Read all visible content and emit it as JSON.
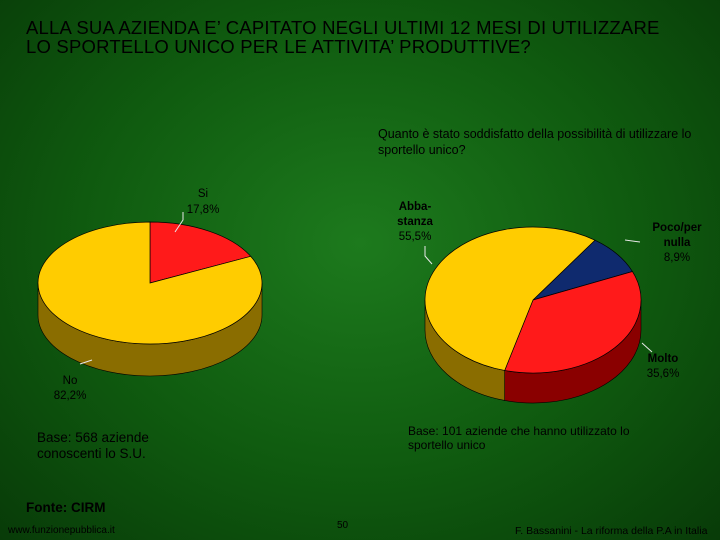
{
  "title": "ALLA SUA AZIENDA E’ CAPITATO NEGLI ULTIMI 12 MESI DI UTILIZZARE LO SPORTELLO UNICO PER LE ATTIVITA’ PRODUTTIVE?",
  "colors": {
    "yellow": "#ffcc00",
    "yellow_side": "#8a6d00",
    "red": "#ff1a1a",
    "red_side": "#8a0000",
    "blue": "#0f2a6e",
    "blue_side": "#061640"
  },
  "chart_data": [
    {
      "type": "pie",
      "slices": [
        {
          "name": "Si",
          "value": 17.8,
          "label": "17,8%",
          "color": "#ff1a1a"
        },
        {
          "name": "No",
          "value": 82.2,
          "label": "82,2%",
          "color": "#ffcc00"
        }
      ],
      "base_note": "Base: 568 aziende conoscenti lo S.U."
    },
    {
      "type": "pie",
      "subtitle": "Quanto è stato soddisfatto della possibilità di utilizzare lo sportello unico?",
      "slices": [
        {
          "name": "Poco/per nulla",
          "value": 8.9,
          "label": "8,9%",
          "color": "#0f2a6e"
        },
        {
          "name": "Molto",
          "value": 35.6,
          "label": "35,6%",
          "color": "#ff1a1a"
        },
        {
          "name": "Abba-stanza",
          "value": 55.5,
          "label": "55,5%",
          "color": "#ffcc00"
        }
      ],
      "base_note": "Base: 101 aziende che hanno utilizzato lo sportello unico"
    }
  ],
  "labels": {
    "si_name": "Si",
    "si_pct": "17,8%",
    "no_name": "No",
    "no_pct": "82,2%",
    "abba_name_1": "Abba-",
    "abba_name_2": "stanza",
    "abba_pct": "55,5%",
    "poco_name_1": "Poco/per",
    "poco_name_2": "nulla",
    "poco_pct": "8,9%",
    "molto_name": "Molto",
    "molto_pct": "35,6%"
  },
  "fonte": "Fonte: CIRM",
  "footer": {
    "left": "www.funzionepubblica.it",
    "page": "50",
    "right": "F. Bassanini - La riforma della P.A in Italia"
  }
}
